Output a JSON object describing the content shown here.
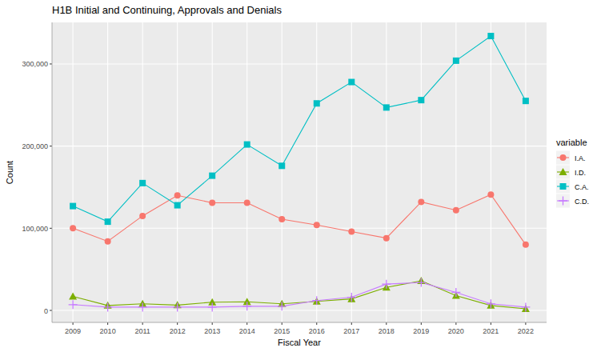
{
  "chart_data": {
    "type": "line",
    "title": "H1B Initial and Continuing, Approvals and Denials",
    "x_label": "Fiscal Year",
    "y_label": "Count",
    "legend_title": "variable",
    "legend": "right",
    "grid": true,
    "categories": [
      "2009",
      "2010",
      "2011",
      "2012",
      "2013",
      "2014",
      "2015",
      "2016",
      "2017",
      "2018",
      "2019",
      "2020",
      "2021",
      "2022"
    ],
    "ylim": [
      -14600,
      350600
    ],
    "yticks": [
      0,
      {
        "value": 100000,
        "label": "100,000"
      },
      {
        "value": 200000,
        "label": "200,000"
      },
      {
        "value": 300000,
        "label": "300,000"
      }
    ],
    "series": [
      {
        "name": "I.A.",
        "color": "#F8766D",
        "marker": "circle",
        "values": [
          100000,
          84000,
          115000,
          140000,
          131000,
          131000,
          111000,
          104000,
          96000,
          88000,
          132000,
          122000,
          141000,
          80000
        ]
      },
      {
        "name": "I.D.",
        "color": "#7CAE00",
        "marker": "triangle",
        "values": [
          17000,
          6000,
          8000,
          6500,
          10000,
          10500,
          8000,
          11000,
          14000,
          28000,
          36000,
          18000,
          6000,
          2000
        ]
      },
      {
        "name": "C.A.",
        "color": "#00BFC4",
        "marker": "square",
        "values": [
          127000,
          108000,
          155000,
          128000,
          164000,
          202000,
          176000,
          252000,
          278000,
          247000,
          256000,
          304000,
          334000,
          255000
        ]
      },
      {
        "name": "C.D.",
        "color": "#C77CFF",
        "marker": "cross",
        "values": [
          7000,
          4000,
          4000,
          4000,
          4000,
          5000,
          5000,
          12000,
          16000,
          32000,
          34000,
          22000,
          8000,
          4000
        ]
      }
    ]
  }
}
